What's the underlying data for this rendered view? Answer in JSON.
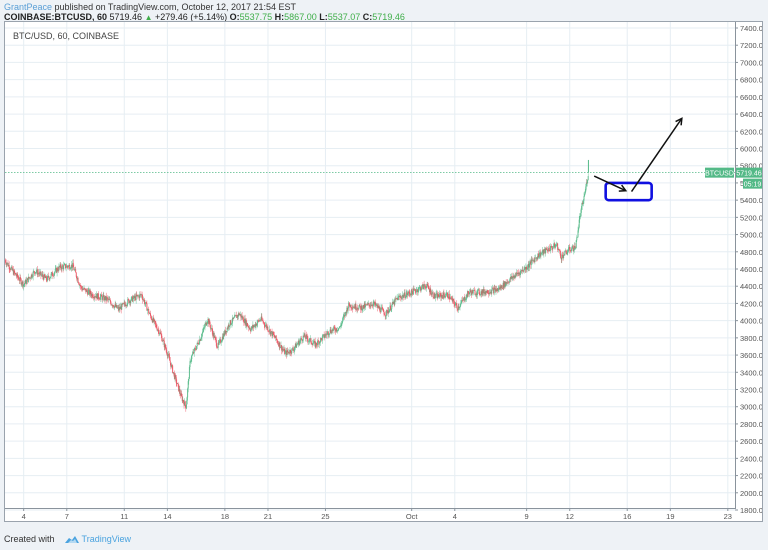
{
  "header": {
    "author": "GrantPeace",
    "published": "published on TradingView.com, October 12, 2017 21:54 EST",
    "symbol_line": "COINBASE:BTCUSD, 60",
    "last": "5719.46",
    "change": "+279.46 (+5.14%)",
    "o_label": "O:",
    "o": "5537.75",
    "h_label": "H:",
    "h": "5867.00",
    "l_label": "L:",
    "l": "5537.07",
    "c_label": "C:",
    "c": "5719.46"
  },
  "legend": {
    "title": "BTC/USD, 60, COINBASE"
  },
  "price_label": {
    "symbol": "BTCUSD",
    "value": "5719.46",
    "countdown": "05:19"
  },
  "footer": {
    "created_with": "Created with",
    "brand": "TradingView"
  },
  "colors": {
    "up": "#53b987",
    "down": "#eb4d5c",
    "grid": "#e6eef3",
    "axis_text": "#555555",
    "price_line": "#53b987",
    "annotation_box": "#1010e0",
    "annotation_arrow": "#111111"
  },
  "chart_data": {
    "type": "candlestick",
    "title": "BTC/USD, 60, COINBASE",
    "interval": "60",
    "xlabel": "",
    "ylabel": "",
    "ylim": [
      1800,
      7400
    ],
    "y_ticks": [
      "7400.00",
      "7200.00",
      "7000.00",
      "6800.00",
      "6600.00",
      "6400.00",
      "6200.00",
      "6000.00",
      "5800.00",
      "5600.00",
      "5400.00",
      "5200.00",
      "5000.00",
      "4800.00",
      "4600.00",
      "4400.00",
      "4200.00",
      "4000.00",
      "3800.00",
      "3600.00",
      "3400.00",
      "3200.00",
      "3000.00",
      "2800.00",
      "2600.00",
      "2400.00",
      "2200.00",
      "2000.00",
      "1800.00"
    ],
    "x_ticks": [
      {
        "label": "4",
        "day": 4
      },
      {
        "label": "7",
        "day": 7
      },
      {
        "label": "11",
        "day": 11
      },
      {
        "label": "14",
        "day": 14
      },
      {
        "label": "18",
        "day": 18
      },
      {
        "label": "21",
        "day": 21
      },
      {
        "label": "25",
        "day": 25
      },
      {
        "label": "Oct",
        "day": 31
      },
      {
        "label": "4",
        "day": 34
      },
      {
        "label": "9",
        "day": 39
      },
      {
        "label": "12",
        "day": 42
      },
      {
        "label": "16",
        "day": 46
      },
      {
        "label": "19",
        "day": 49
      },
      {
        "label": "23",
        "day": 53
      }
    ],
    "x_range_days": [
      2.7,
      53.5
    ],
    "grid": true,
    "legend_position": "top-left",
    "last_price": 5719.46,
    "approx_path": [
      {
        "day": 2.7,
        "price": 4700
      },
      {
        "day": 3.3,
        "price": 4560
      },
      {
        "day": 4.0,
        "price": 4420
      },
      {
        "day": 4.8,
        "price": 4580
      },
      {
        "day": 5.6,
        "price": 4480
      },
      {
        "day": 6.5,
        "price": 4620
      },
      {
        "day": 7.4,
        "price": 4640
      },
      {
        "day": 8.0,
        "price": 4380
      },
      {
        "day": 8.8,
        "price": 4300
      },
      {
        "day": 9.8,
        "price": 4250
      },
      {
        "day": 10.6,
        "price": 4130
      },
      {
        "day": 11.3,
        "price": 4230
      },
      {
        "day": 12.2,
        "price": 4300
      },
      {
        "day": 12.8,
        "price": 4060
      },
      {
        "day": 13.5,
        "price": 3850
      },
      {
        "day": 14.0,
        "price": 3620
      },
      {
        "day": 14.5,
        "price": 3350
      },
      {
        "day": 15.0,
        "price": 3100
      },
      {
        "day": 15.3,
        "price": 3000
      },
      {
        "day": 15.6,
        "price": 3550
      },
      {
        "day": 16.3,
        "price": 3800
      },
      {
        "day": 16.8,
        "price": 4020
      },
      {
        "day": 17.5,
        "price": 3700
      },
      {
        "day": 18.3,
        "price": 3960
      },
      {
        "day": 19.0,
        "price": 4080
      },
      {
        "day": 19.8,
        "price": 3900
      },
      {
        "day": 20.5,
        "price": 4020
      },
      {
        "day": 21.5,
        "price": 3800
      },
      {
        "day": 22.2,
        "price": 3620
      },
      {
        "day": 22.7,
        "price": 3660
      },
      {
        "day": 23.5,
        "price": 3820
      },
      {
        "day": 24.3,
        "price": 3720
      },
      {
        "day": 25.3,
        "price": 3880
      },
      {
        "day": 26.0,
        "price": 3920
      },
      {
        "day": 26.6,
        "price": 4180
      },
      {
        "day": 27.5,
        "price": 4150
      },
      {
        "day": 28.3,
        "price": 4200
      },
      {
        "day": 29.2,
        "price": 4080
      },
      {
        "day": 30.0,
        "price": 4260
      },
      {
        "day": 31.0,
        "price": 4330
      },
      {
        "day": 32.0,
        "price": 4410
      },
      {
        "day": 32.6,
        "price": 4280
      },
      {
        "day": 33.5,
        "price": 4300
      },
      {
        "day": 34.2,
        "price": 4150
      },
      {
        "day": 35.0,
        "price": 4330
      },
      {
        "day": 35.8,
        "price": 4330
      },
      {
        "day": 37.0,
        "price": 4360
      },
      {
        "day": 38.0,
        "price": 4500
      },
      {
        "day": 39.0,
        "price": 4620
      },
      {
        "day": 39.8,
        "price": 4760
      },
      {
        "day": 40.5,
        "price": 4830
      },
      {
        "day": 41.1,
        "price": 4880
      },
      {
        "day": 41.4,
        "price": 4740
      },
      {
        "day": 42.0,
        "price": 4830
      },
      {
        "day": 42.4,
        "price": 4850
      },
      {
        "day": 42.7,
        "price": 5200
      },
      {
        "day": 43.0,
        "price": 5440
      },
      {
        "day": 43.3,
        "price": 5719
      }
    ],
    "peak": {
      "day": 43.3,
      "price": 5867
    },
    "annotations": [
      {
        "type": "rectangle",
        "x0_day": 44.5,
        "x1_day": 47.7,
        "y0_price": 5400,
        "y1_price": 5600,
        "color": "#1010e0"
      },
      {
        "type": "arrow",
        "from": {
          "day": 43.7,
          "price": 5680
        },
        "to": {
          "day": 45.9,
          "price": 5510
        }
      },
      {
        "type": "arrow",
        "from": {
          "day": 46.3,
          "price": 5500
        },
        "to": {
          "day": 49.8,
          "price": 6350
        }
      }
    ]
  }
}
